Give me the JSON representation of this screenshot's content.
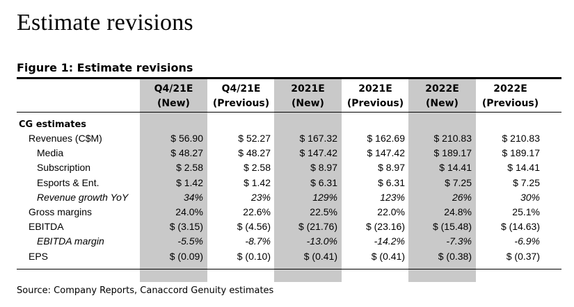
{
  "page_title": "Estimate revisions",
  "figure_title": "Figure 1: Estimate revisions",
  "columns": [
    {
      "line1": "Q4/21E",
      "line2": "(New)",
      "shaded": true
    },
    {
      "line1": "Q4/21E",
      "line2": "(Previous)",
      "shaded": false
    },
    {
      "line1": "2021E",
      "line2": "(New)",
      "shaded": true
    },
    {
      "line1": "2021E",
      "line2": "(Previous)",
      "shaded": false
    },
    {
      "line1": "2022E",
      "line2": "(New)",
      "shaded": true
    },
    {
      "line1": "2022E",
      "line2": "(Previous)",
      "shaded": false
    }
  ],
  "section_label": "CG estimates",
  "rows": [
    {
      "label": "Revenues (C$M)",
      "indent": 1,
      "italic": false,
      "values": [
        "$ 56.90",
        "$ 52.27",
        "$ 167.32",
        "$ 162.69",
        "$ 210.83",
        "$ 210.83"
      ]
    },
    {
      "label": "Media",
      "indent": 2,
      "italic": false,
      "values": [
        "$ 48.27",
        "$ 48.27",
        "$ 147.42",
        "$ 147.42",
        "$ 189.17",
        "$ 189.17"
      ]
    },
    {
      "label": "Subscription",
      "indent": 2,
      "italic": false,
      "values": [
        "$ 2.58",
        "$ 2.58",
        "$ 8.97",
        "$ 8.97",
        "$ 14.41",
        "$ 14.41"
      ]
    },
    {
      "label": "Esports & Ent.",
      "indent": 2,
      "italic": false,
      "values": [
        "$ 1.42",
        "$ 1.42",
        "$ 6.31",
        "$ 6.31",
        "$ 7.25",
        "$ 7.25"
      ]
    },
    {
      "label": "Revenue growth YoY",
      "indent": 2,
      "italic": true,
      "values": [
        "34%",
        "23%",
        "129%",
        "123%",
        "26%",
        "30%"
      ]
    },
    {
      "label": "Gross margins",
      "indent": 1,
      "italic": false,
      "values": [
        "24.0%",
        "22.6%",
        "22.5%",
        "22.0%",
        "24.8%",
        "25.1%"
      ]
    },
    {
      "label": "EBITDA",
      "indent": 1,
      "italic": false,
      "values": [
        "$ (3.15)",
        "$ (4.56)",
        "$ (21.76)",
        "$ (23.16)",
        "$ (15.48)",
        "$ (14.63)"
      ]
    },
    {
      "label": "EBITDA margin",
      "indent": 2,
      "italic": true,
      "values": [
        "-5.5%",
        "-8.7%",
        "-13.0%",
        "-14.2%",
        "-7.3%",
        "-6.9%"
      ]
    },
    {
      "label": "EPS",
      "indent": 1,
      "italic": false,
      "values": [
        "$ (0.09)",
        "$ (0.10)",
        "$ (0.41)",
        "$ (0.41)",
        "$ (0.38)",
        "$ (0.37)"
      ]
    }
  ],
  "source": "Source: Company Reports, Canaccord Genuity estimates"
}
